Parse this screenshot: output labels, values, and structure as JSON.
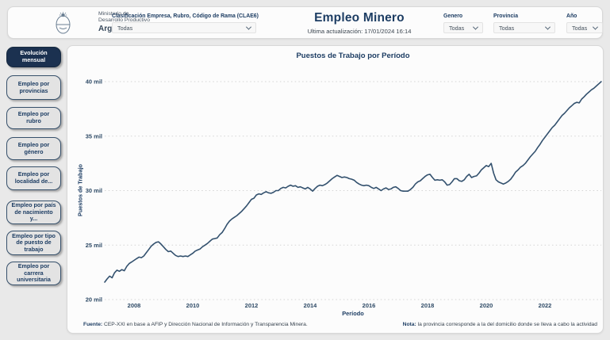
{
  "header": {
    "ministry": {
      "line1": "Ministerio de",
      "line2": "Desarrollo Productivo",
      "brand": "Argentina"
    },
    "clae6_filter": {
      "label": "Clasificación Empresa, Rubro, Código de Rama (CLAE6)",
      "value": "Todas"
    },
    "title": "Empleo Minero",
    "updated": "Ultima actualización: 17/01/2024 16:14",
    "filters": [
      {
        "label": "Genero",
        "value": "Todas"
      },
      {
        "label": "Provincia",
        "value": "Todas"
      },
      {
        "label": "Año",
        "value": "Todas"
      }
    ]
  },
  "sidebar": {
    "items": [
      {
        "label": "Evolución mensual",
        "active": true
      },
      {
        "label": "Empleo por provincias",
        "active": false
      },
      {
        "label": "Empleo por rubro",
        "active": false
      },
      {
        "label": "Empleo por género",
        "active": false
      },
      {
        "label": "Empleo por localidad de...",
        "active": false
      },
      {
        "label": "Empleo por país de nacimiento y...",
        "active": false
      },
      {
        "label": "Empleo por tipo de puesto de trabajo",
        "active": false
      },
      {
        "label": "Empleo por carrera universitaria",
        "active": false
      }
    ]
  },
  "chart_data": {
    "type": "line",
    "title": "Puestos de Trabajo por Período",
    "xlabel": "Período",
    "ylabel": "Puestos de Trabajo",
    "unit": "mil (thousands of jobs)",
    "ylim_thousands": [
      20,
      40
    ],
    "x_range_years": [
      2007,
      2024
    ],
    "grid": "dotted horizontal gridlines",
    "legend": "none",
    "line_color": "#33516E",
    "y_ticks": [
      {
        "label": "20 mil",
        "value": 20
      },
      {
        "label": "25 mil",
        "value": 25
      },
      {
        "label": "30 mil",
        "value": 30
      },
      {
        "label": "35 mil",
        "value": 35
      },
      {
        "label": "40 mil",
        "value": 40
      }
    ],
    "x_ticks": [
      {
        "label": "2008",
        "year": 2008
      },
      {
        "label": "2010",
        "year": 2010
      },
      {
        "label": "2012",
        "year": 2012
      },
      {
        "label": "2014",
        "year": 2014
      },
      {
        "label": "2016",
        "year": 2016
      },
      {
        "label": "2018",
        "year": 2018
      },
      {
        "label": "2020",
        "year": 2020
      },
      {
        "label": "2022",
        "year": 2022
      }
    ],
    "series": [
      {
        "name": "Puestos de trabajo",
        "start_year": 2007,
        "frequency": "monthly",
        "values_thousands": [
          21.6,
          21.9,
          22.15,
          22.0,
          22.45,
          22.7,
          22.6,
          22.75,
          22.65,
          23.05,
          23.3,
          23.45,
          23.6,
          23.75,
          23.9,
          23.85,
          24.0,
          24.3,
          24.6,
          24.9,
          25.1,
          25.25,
          25.3,
          25.1,
          24.85,
          24.6,
          24.4,
          24.45,
          24.25,
          24.05,
          23.95,
          24.0,
          23.95,
          24.0,
          23.95,
          24.1,
          24.25,
          24.45,
          24.55,
          24.65,
          24.85,
          25.0,
          25.15,
          25.35,
          25.55,
          25.6,
          25.65,
          25.95,
          26.15,
          26.5,
          26.9,
          27.2,
          27.4,
          27.55,
          27.7,
          27.9,
          28.1,
          28.35,
          28.6,
          28.9,
          29.2,
          29.3,
          29.6,
          29.7,
          29.65,
          29.8,
          29.9,
          29.8,
          29.75,
          29.85,
          30.0,
          30.0,
          30.2,
          30.3,
          30.25,
          30.4,
          30.5,
          30.4,
          30.45,
          30.3,
          30.35,
          30.25,
          30.15,
          30.3,
          30.15,
          29.95,
          30.2,
          30.4,
          30.5,
          30.45,
          30.55,
          30.7,
          30.9,
          31.1,
          31.25,
          31.4,
          31.3,
          31.2,
          31.25,
          31.2,
          31.1,
          31.05,
          30.95,
          30.75,
          30.6,
          30.5,
          30.45,
          30.5,
          30.45,
          30.3,
          30.2,
          30.3,
          30.15,
          30.0,
          30.15,
          30.25,
          30.1,
          30.15,
          30.3,
          30.35,
          30.2,
          30.0,
          29.95,
          29.95,
          29.95,
          30.1,
          30.3,
          30.6,
          30.8,
          30.9,
          31.1,
          31.3,
          31.45,
          31.5,
          31.2,
          30.95,
          31.0,
          30.95,
          31.0,
          30.8,
          30.5,
          30.55,
          30.8,
          31.1,
          31.1,
          30.9,
          30.85,
          31.0,
          31.3,
          31.5,
          31.2,
          31.3,
          31.35,
          31.6,
          31.9,
          32.1,
          32.3,
          32.2,
          32.5,
          31.6,
          31.0,
          30.8,
          30.7,
          30.6,
          30.7,
          30.85,
          31.05,
          31.35,
          31.7,
          31.9,
          32.15,
          32.3,
          32.5,
          32.8,
          33.1,
          33.35,
          33.6,
          33.95,
          34.25,
          34.6,
          34.9,
          35.2,
          35.5,
          35.8,
          36.0,
          36.3,
          36.6,
          36.9,
          37.1,
          37.35,
          37.6,
          37.8,
          38.0,
          38.1,
          38.05,
          38.4,
          38.6,
          38.85,
          39.05,
          39.25,
          39.4,
          39.6,
          39.8,
          40.0
        ]
      }
    ]
  },
  "footer": {
    "fuente_label": "Fuente:",
    "fuente_text": " CEP-XXI en base a AFIP y Dirección Nacional de Información y Transparencia Minera.",
    "nota_label": "Nota:",
    "nota_text": " la provincia corresponde a la del domicilio donde se lleva a cabo la actividad"
  },
  "colors": {
    "accent_text": "#1d3d63",
    "line": "#33516E",
    "active_button_bg": "#1b3150",
    "button_bg": "#e3e3e3",
    "page_bg": "#e9e9e9",
    "card_bg": "#fcfcfc"
  }
}
